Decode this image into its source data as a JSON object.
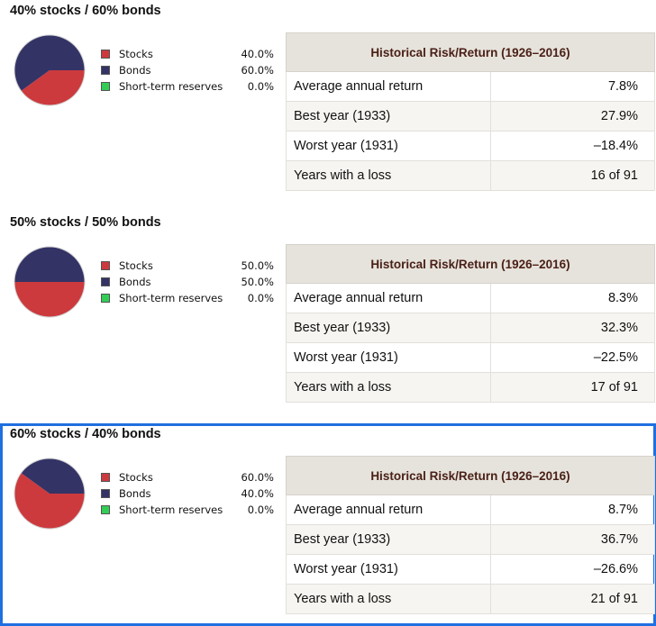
{
  "colors": {
    "stocks": "#cc3a3d",
    "bonds": "#333366",
    "short_term_reserves": "#33cc55",
    "highlight_border": "#1f6fe0",
    "table_header_bg": "#e6e3dc",
    "table_header_text": "#4a2017"
  },
  "chart_data": [
    {
      "type": "pie",
      "title": "40% stocks / 60% bonds",
      "categories": [
        "Stocks",
        "Bonds",
        "Short-term reserves"
      ],
      "values": [
        40.0,
        60.0,
        0.0
      ],
      "value_labels": [
        "40.0%",
        "60.0%",
        "0.0%"
      ],
      "legend_position": "right",
      "table": {
        "header": "Historical Risk/Return (1926–2016)",
        "rows": [
          {
            "label": "Average annual return",
            "value": "7.8%"
          },
          {
            "label": "Best year (1933)",
            "value": "27.9%"
          },
          {
            "label": "Worst year (1931)",
            "value": "–18.4%"
          },
          {
            "label": "Years with a loss",
            "value": "16 of 91"
          }
        ]
      }
    },
    {
      "type": "pie",
      "title": "50% stocks / 50% bonds",
      "categories": [
        "Stocks",
        "Bonds",
        "Short-term reserves"
      ],
      "values": [
        50.0,
        50.0,
        0.0
      ],
      "value_labels": [
        "50.0%",
        "50.0%",
        "0.0%"
      ],
      "legend_position": "right",
      "table": {
        "header": "Historical Risk/Return (1926–2016)",
        "rows": [
          {
            "label": "Average annual return",
            "value": "8.3%"
          },
          {
            "label": "Best year (1933)",
            "value": "32.3%"
          },
          {
            "label": "Worst year (1931)",
            "value": "–22.5%"
          },
          {
            "label": "Years with a loss",
            "value": "17 of 91"
          }
        ]
      }
    },
    {
      "type": "pie",
      "title": "60% stocks / 40% bonds",
      "categories": [
        "Stocks",
        "Bonds",
        "Short-term reserves"
      ],
      "values": [
        60.0,
        40.0,
        0.0
      ],
      "value_labels": [
        "60.0%",
        "40.0%",
        "0.0%"
      ],
      "legend_position": "right",
      "highlighted": true,
      "table": {
        "header": "Historical Risk/Return (1926–2016)",
        "rows": [
          {
            "label": "Average annual return",
            "value": "8.7%"
          },
          {
            "label": "Best year (1933)",
            "value": "36.7%"
          },
          {
            "label": "Worst year (1931)",
            "value": "–26.6%"
          },
          {
            "label": "Years with a loss",
            "value": "21 of 91"
          }
        ]
      }
    }
  ]
}
